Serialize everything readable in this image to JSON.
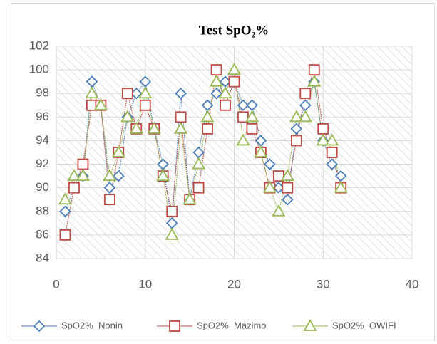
{
  "chart_data": {
    "type": "scatter",
    "title": "Test SpO₂%",
    "x": [
      1,
      2,
      3,
      4,
      5,
      6,
      7,
      8,
      9,
      10,
      11,
      12,
      13,
      14,
      15,
      16,
      17,
      18,
      19,
      20,
      21,
      22,
      23,
      24,
      25,
      26,
      27,
      28,
      29,
      30,
      31,
      32
    ],
    "series": [
      {
        "name": "SpO2%_Nonin",
        "color": "#4a7ebb",
        "marker": "diamond",
        "values": [
          88,
          90,
          91,
          99,
          97,
          90,
          91,
          96,
          98,
          99,
          95,
          92,
          87,
          98,
          89,
          93,
          97,
          98,
          99,
          99,
          97,
          97,
          94,
          92,
          90,
          89,
          95,
          97,
          99,
          94,
          92,
          91
        ]
      },
      {
        "name": "SpO2%_Mazimo",
        "color": "#be4b48",
        "marker": "square",
        "values": [
          86,
          90,
          92,
          97,
          97,
          89,
          93,
          98,
          95,
          97,
          95,
          91,
          88,
          96,
          89,
          90,
          95,
          100,
          97,
          99,
          96,
          95,
          93,
          90,
          91,
          90,
          94,
          98,
          100,
          95,
          93,
          90
        ]
      },
      {
        "name": "SpO2%_OWIFI",
        "color": "#98b954",
        "marker": "triangle",
        "values": [
          89,
          91,
          91,
          98,
          97,
          91,
          93,
          96,
          95,
          98,
          95,
          91,
          86,
          95,
          89,
          92,
          96,
          99,
          98,
          100,
          94,
          96,
          93,
          90,
          88,
          91,
          96,
          96,
          99,
          94,
          94,
          90
        ]
      }
    ],
    "xlim": [
      0,
      40
    ],
    "xticks": [
      0,
      10,
      20,
      30,
      40
    ],
    "ylim": [
      84,
      102
    ],
    "yticks": [
      84,
      86,
      88,
      90,
      92,
      94,
      96,
      98,
      100,
      102
    ],
    "grid": true,
    "legend": "bottom"
  }
}
